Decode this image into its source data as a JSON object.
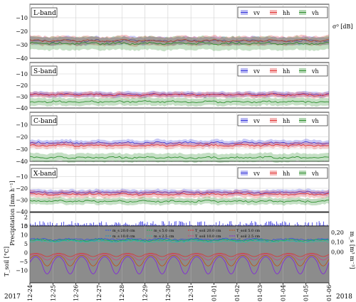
{
  "chart_data": {
    "type": "line",
    "x_ticks": [
      "12-24",
      "12-25",
      "12-26",
      "12-27",
      "12-28",
      "12-29",
      "12-30",
      "12-31",
      "01-01",
      "01-02",
      "01-03",
      "01-04",
      "01-05",
      "01-06"
    ],
    "year_start": "2017",
    "year_end": "2018",
    "backscatter_axis_label": "σ⁰ [dB]",
    "backscatter_ylim": [
      -40,
      0
    ],
    "backscatter_yticks": [
      -40,
      -30,
      -20,
      -10,
      0
    ],
    "legend": [
      "vv",
      "hh",
      "vh"
    ],
    "colors": {
      "vv": "#3b3bdc",
      "hh": "#e23a3a",
      "vh": "#2f8f2f"
    },
    "panels": [
      {
        "label": "L-band",
        "series": [
          {
            "name": "vv",
            "mean": -27,
            "band": 2.5
          },
          {
            "name": "hh",
            "mean": -27,
            "band": 3
          },
          {
            "name": "vh",
            "mean": -29,
            "band": 4.5
          }
        ]
      },
      {
        "label": "S-band",
        "series": [
          {
            "name": "vv",
            "mean": -28,
            "band": 2
          },
          {
            "name": "hh",
            "mean": -28.5,
            "band": 2
          },
          {
            "name": "vh",
            "mean": -34.5,
            "band": 3
          }
        ]
      },
      {
        "label": "C-band",
        "series": [
          {
            "name": "vv",
            "mean": -25,
            "band": 2
          },
          {
            "name": "hh",
            "mean": -27,
            "band": 2
          },
          {
            "name": "vh",
            "mean": -37,
            "band": 3
          }
        ]
      },
      {
        "label": "X-band",
        "series": [
          {
            "name": "vv",
            "mean": -23.5,
            "band": 2
          },
          {
            "name": "hh",
            "mean": -25,
            "band": 2.5
          },
          {
            "name": "vh",
            "mean": -31,
            "band": 2.5
          }
        ]
      }
    ],
    "precip": {
      "ylabel": "Precipitation [mm h⁻¹]",
      "ylim": [
        0,
        3
      ],
      "yticks": [
        0,
        2
      ]
    },
    "soil": {
      "left_ylabel": "T_soil [°C]",
      "left_ylim": [
        -17,
        15
      ],
      "left_yticks": [
        -10,
        -5,
        0,
        5,
        10,
        15
      ],
      "left_tick_labels": [
        "−10",
        "−5",
        "0",
        "5",
        "10",
        "15"
      ],
      "right_ylabel": "m_s [m³ m⁻³]",
      "right_yticks": [
        "0,00",
        "0,10",
        "0,20"
      ],
      "legend": [
        "m_s 20.0 cm",
        "m_s 5.0 cm",
        "T_soil 20.0 cm",
        "T_soil 5.0 cm",
        "m_s 10.0 cm",
        "m_s 2.5 cm",
        "T_soil 10.0 cm",
        "T_soil 2.5 cm"
      ],
      "legend_colors": [
        "#3050e0",
        "#20b050",
        "#e03030",
        "#c05010",
        "#2090c0",
        "#30c0a0",
        "#d04080",
        "#8020e0"
      ]
    }
  }
}
